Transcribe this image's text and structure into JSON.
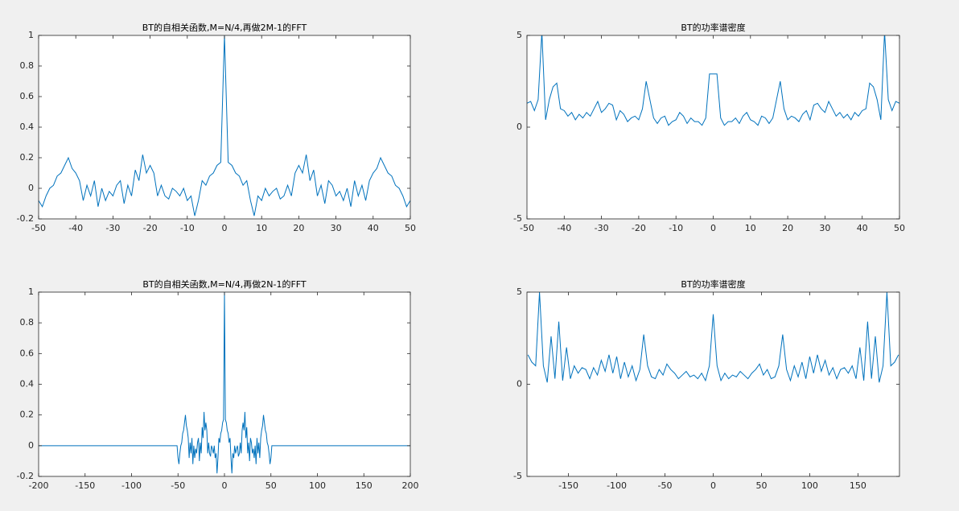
{
  "chart_data": [
    {
      "type": "line",
      "title": "BT的自相关函数,M=N/4,再做2M-1的FFT",
      "color": "#0072bd",
      "x": [
        -50,
        -49,
        -48,
        -47,
        -46,
        -45,
        -44,
        -43,
        -42,
        -41,
        -40,
        -39,
        -38,
        -37,
        -36,
        -35,
        -34,
        -33,
        -32,
        -31,
        -30,
        -29,
        -28,
        -27,
        -26,
        -25,
        -24,
        -23,
        -22,
        -21,
        -20,
        -19,
        -18,
        -17,
        -16,
        -15,
        -14,
        -13,
        -12,
        -11,
        -10,
        -9,
        -8,
        -7,
        -6,
        -5,
        -4,
        -3,
        -2,
        -1,
        0,
        1,
        2,
        3,
        4,
        5,
        6,
        7,
        8,
        9,
        10,
        11,
        12,
        13,
        14,
        15,
        16,
        17,
        18,
        19,
        20,
        21,
        22,
        23,
        24,
        25,
        26,
        27,
        28,
        29,
        30,
        31,
        32,
        33,
        34,
        35,
        36,
        37,
        38,
        39,
        40,
        41,
        42,
        43,
        44,
        45,
        46,
        47,
        48,
        49,
        50
      ],
      "values": [
        -0.08,
        -0.12,
        -0.05,
        0,
        0.02,
        0.08,
        0.1,
        0.15,
        0.2,
        0.13,
        0.1,
        0.05,
        -0.08,
        0.02,
        -0.05,
        0.05,
        -0.12,
        0,
        -0.08,
        -0.02,
        -0.05,
        0.02,
        0.05,
        -0.1,
        0.02,
        -0.05,
        0.12,
        0.05,
        0.22,
        0.1,
        0.15,
        0.1,
        -0.05,
        0.02,
        -0.05,
        -0.07,
        0,
        -0.02,
        -0.05,
        0,
        -0.08,
        -0.05,
        -0.18,
        -0.08,
        0.05,
        0.02,
        0.08,
        0.1,
        0.15,
        0.17,
        1,
        0.17,
        0.15,
        0.1,
        0.08,
        0.02,
        0.05,
        -0.08,
        -0.18,
        -0.05,
        -0.08,
        0,
        -0.05,
        -0.02,
        0,
        -0.07,
        -0.05,
        0.02,
        -0.05,
        0.1,
        0.15,
        0.1,
        0.22,
        0.05,
        0.12,
        -0.05,
        0.02,
        -0.1,
        0.05,
        0.02,
        -0.05,
        -0.02,
        -0.08,
        0,
        -0.12,
        0.05,
        -0.05,
        0.02,
        -0.08,
        0.05,
        0.1,
        0.13,
        0.2,
        0.15,
        0.1,
        0.08,
        0.02,
        0,
        -0.05,
        -0.12,
        -0.08
      ],
      "xlim": [
        -50,
        50
      ],
      "ylim": [
        -0.2,
        1
      ],
      "xticks": [
        -50,
        -40,
        -30,
        -20,
        -10,
        0,
        10,
        20,
        30,
        40,
        50
      ],
      "yticks": [
        -0.2,
        0,
        0.2,
        0.4,
        0.6,
        0.8,
        1
      ]
    },
    {
      "type": "line",
      "title": "BT的功率谱密度",
      "color": "#0072bd",
      "x": [
        -50,
        -49,
        -48,
        -47,
        -46,
        -45,
        -44,
        -43,
        -42,
        -41,
        -40,
        -39,
        -38,
        -37,
        -36,
        -35,
        -34,
        -33,
        -32,
        -31,
        -30,
        -29,
        -28,
        -27,
        -26,
        -25,
        -24,
        -23,
        -22,
        -21,
        -20,
        -19,
        -18,
        -17,
        -16,
        -15,
        -14,
        -13,
        -12,
        -11,
        -10,
        -9,
        -8,
        -7,
        -6,
        -5,
        -4,
        -3,
        -2,
        -1,
        0,
        1,
        2,
        3,
        4,
        5,
        6,
        7,
        8,
        9,
        10,
        11,
        12,
        13,
        14,
        15,
        16,
        17,
        18,
        19,
        20,
        21,
        22,
        23,
        24,
        25,
        26,
        27,
        28,
        29,
        30,
        31,
        32,
        33,
        34,
        35,
        36,
        37,
        38,
        39,
        40,
        41,
        42,
        43,
        44,
        45,
        46,
        47,
        48,
        49,
        50
      ],
      "values": [
        1.3,
        1.4,
        0.9,
        1.5,
        5.2,
        0.4,
        1.5,
        2.2,
        2.4,
        1.0,
        0.9,
        0.6,
        0.8,
        0.4,
        0.7,
        0.5,
        0.8,
        0.6,
        1.0,
        1.4,
        0.8,
        1.0,
        1.3,
        1.2,
        0.4,
        0.9,
        0.7,
        0.3,
        0.5,
        0.6,
        0.4,
        1.0,
        2.5,
        1.5,
        0.5,
        0.2,
        0.5,
        0.6,
        0.1,
        0.3,
        0.4,
        0.8,
        0.6,
        0.2,
        0.5,
        0.3,
        0.3,
        0.1,
        0.5,
        2.9,
        2.9,
        2.9,
        0.5,
        0.1,
        0.3,
        0.3,
        0.5,
        0.2,
        0.6,
        0.8,
        0.4,
        0.3,
        0.1,
        0.6,
        0.5,
        0.2,
        0.5,
        1.5,
        2.5,
        1.0,
        0.4,
        0.6,
        0.5,
        0.3,
        0.7,
        0.9,
        0.4,
        1.2,
        1.3,
        1.0,
        0.8,
        1.4,
        1.0,
        0.6,
        0.8,
        0.5,
        0.7,
        0.4,
        0.8,
        0.6,
        0.9,
        1.0,
        2.4,
        2.2,
        1.5,
        0.4,
        5.2,
        1.5,
        0.9,
        1.4,
        1.3
      ],
      "xlim": [
        -50,
        50
      ],
      "ylim": [
        -5,
        5
      ],
      "xticks": [
        -50,
        -40,
        -30,
        -20,
        -10,
        0,
        10,
        20,
        30,
        40,
        50
      ],
      "yticks": [
        -5,
        0,
        5
      ]
    },
    {
      "type": "line",
      "title": "BT的自相关函数,M=N/4,再做2N-1的FFT",
      "color": "#0072bd",
      "x": [
        -200,
        -51,
        -50,
        -49,
        -48,
        -47,
        -46,
        -45,
        -44,
        -43,
        -42,
        -41,
        -40,
        -39,
        -38,
        -37,
        -36,
        -35,
        -34,
        -33,
        -32,
        -31,
        -30,
        -29,
        -28,
        -27,
        -26,
        -25,
        -24,
        -23,
        -22,
        -21,
        -20,
        -19,
        -18,
        -17,
        -16,
        -15,
        -14,
        -13,
        -12,
        -11,
        -10,
        -9,
        -8,
        -7,
        -6,
        -5,
        -4,
        -3,
        -2,
        -1,
        0,
        1,
        2,
        3,
        4,
        5,
        6,
        7,
        8,
        9,
        10,
        11,
        12,
        13,
        14,
        15,
        16,
        17,
        18,
        19,
        20,
        21,
        22,
        23,
        24,
        25,
        26,
        27,
        28,
        29,
        30,
        31,
        32,
        33,
        34,
        35,
        36,
        37,
        38,
        39,
        40,
        41,
        42,
        43,
        44,
        45,
        46,
        47,
        48,
        49,
        50,
        51,
        200
      ],
      "values": [
        0,
        0,
        -0.08,
        -0.12,
        -0.05,
        0,
        0.02,
        0.08,
        0.1,
        0.15,
        0.2,
        0.13,
        0.1,
        0.05,
        -0.08,
        0.02,
        -0.05,
        0.05,
        -0.12,
        0,
        -0.08,
        -0.02,
        -0.05,
        0.02,
        0.05,
        -0.1,
        0.02,
        -0.05,
        0.12,
        0.05,
        0.22,
        0.1,
        0.15,
        0.1,
        -0.05,
        0.02,
        -0.05,
        -0.07,
        0,
        -0.02,
        -0.05,
        0,
        -0.08,
        -0.05,
        -0.18,
        -0.08,
        0.05,
        0.02,
        0.08,
        0.1,
        0.15,
        0.17,
        1,
        0.17,
        0.15,
        0.1,
        0.08,
        0.02,
        0.05,
        -0.08,
        -0.18,
        -0.05,
        -0.08,
        0,
        -0.05,
        -0.02,
        0,
        -0.07,
        -0.05,
        0.02,
        -0.05,
        0.1,
        0.15,
        0.1,
        0.22,
        0.05,
        0.12,
        -0.05,
        0.02,
        -0.1,
        0.05,
        0.02,
        -0.05,
        -0.02,
        -0.08,
        0,
        -0.12,
        0.05,
        -0.05,
        0.02,
        -0.08,
        0.05,
        0.1,
        0.13,
        0.2,
        0.15,
        0.1,
        0.08,
        0.02,
        0,
        -0.05,
        -0.12,
        -0.08,
        0,
        0
      ],
      "xlim": [
        -200,
        200
      ],
      "ylim": [
        -0.2,
        1
      ],
      "xticks": [
        -200,
        -150,
        -100,
        -50,
        0,
        50,
        100,
        150,
        200
      ],
      "yticks": [
        -0.2,
        0,
        0.2,
        0.4,
        0.6,
        0.8,
        1
      ]
    },
    {
      "type": "line",
      "title": "BT的功率谱密度",
      "color": "#0072bd",
      "x": [
        -192,
        -188,
        -184,
        -180,
        -176,
        -172,
        -168,
        -164,
        -160,
        -156,
        -152,
        -148,
        -144,
        -140,
        -136,
        -132,
        -128,
        -124,
        -120,
        -116,
        -112,
        -108,
        -104,
        -100,
        -96,
        -92,
        -88,
        -84,
        -80,
        -76,
        -72,
        -68,
        -64,
        -60,
        -56,
        -52,
        -48,
        -44,
        -40,
        -36,
        -32,
        -28,
        -24,
        -20,
        -16,
        -12,
        -8,
        -4,
        0,
        4,
        8,
        12,
        16,
        20,
        24,
        28,
        32,
        36,
        40,
        44,
        48,
        52,
        56,
        60,
        64,
        68,
        72,
        76,
        80,
        84,
        88,
        92,
        96,
        100,
        104,
        108,
        112,
        116,
        120,
        124,
        128,
        132,
        136,
        140,
        144,
        148,
        152,
        156,
        160,
        164,
        168,
        172,
        176,
        180,
        184,
        188,
        192
      ],
      "values": [
        1.6,
        1.2,
        1.0,
        5.0,
        1.0,
        0.1,
        2.6,
        0.3,
        3.4,
        0.2,
        2.0,
        0.3,
        1.0,
        0.6,
        0.9,
        0.8,
        0.3,
        0.9,
        0.5,
        1.3,
        0.7,
        1.6,
        0.6,
        1.5,
        0.3,
        1.2,
        0.4,
        1.0,
        0.2,
        0.8,
        2.7,
        1.0,
        0.4,
        0.3,
        0.8,
        0.5,
        1.1,
        0.8,
        0.6,
        0.3,
        0.5,
        0.7,
        0.4,
        0.5,
        0.3,
        0.6,
        0.2,
        1.0,
        3.8,
        1.0,
        0.2,
        0.6,
        0.3,
        0.5,
        0.4,
        0.7,
        0.5,
        0.3,
        0.6,
        0.8,
        1.1,
        0.5,
        0.8,
        0.3,
        0.4,
        1.0,
        2.7,
        0.8,
        0.2,
        1.0,
        0.4,
        1.2,
        0.3,
        1.5,
        0.6,
        1.6,
        0.7,
        1.3,
        0.5,
        0.9,
        0.3,
        0.8,
        0.9,
        0.6,
        1.0,
        0.3,
        2.0,
        0.2,
        3.4,
        0.3,
        2.6,
        0.1,
        1.0,
        5.0,
        1.0,
        1.2,
        1.6
      ],
      "xlim": [
        -193,
        193
      ],
      "ylim": [
        -5,
        5
      ],
      "xticks": [
        -150,
        -100,
        -50,
        0,
        50,
        100,
        150
      ],
      "yticks": [
        -5,
        0,
        5
      ]
    }
  ]
}
